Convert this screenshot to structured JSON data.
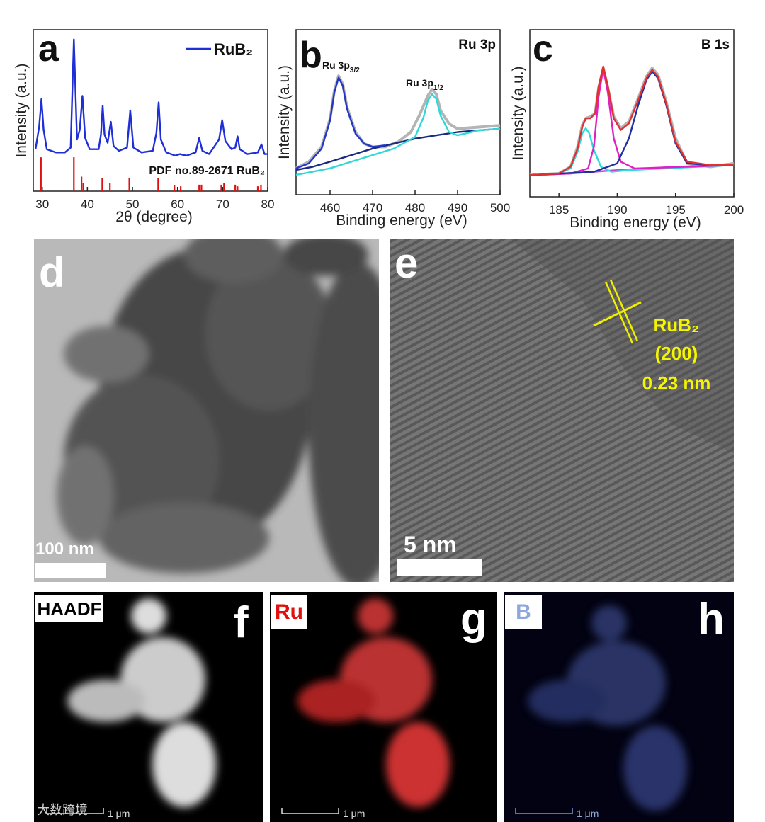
{
  "chart_data": [
    {
      "type": "line",
      "panel": "a",
      "x_label": "2θ (degree)",
      "y_label": "Intensity (a.u.)",
      "xlim": [
        28,
        80
      ],
      "xticks": [
        30,
        40,
        50,
        60,
        70,
        80
      ],
      "ylim": [
        0,
        100
      ],
      "legend": "top-right",
      "series": [
        {
          "name": "RuB₂",
          "color": "#1f2fd8",
          "x": [
            28.5,
            29.3,
            29.8,
            30.3,
            31,
            33,
            35,
            36.3,
            37,
            37.7,
            38.3,
            38.9,
            39.5,
            40.5,
            42.5,
            43.0,
            43.4,
            43.8,
            44.5,
            45.2,
            45.8,
            47,
            48.8,
            49.5,
            50.2,
            52,
            54.5,
            55.3,
            55.8,
            56.3,
            57.5,
            59.5,
            60.5,
            62,
            64.0,
            64.8,
            65.5,
            67,
            69.2,
            69.9,
            70.6,
            72,
            72.8,
            73.3,
            73.8,
            75.5,
            77.8,
            78.6,
            79.3,
            80
          ],
          "values": [
            26,
            40,
            57,
            38,
            26,
            24,
            24,
            27,
            94,
            32,
            38,
            59,
            33,
            26,
            26,
            35,
            53,
            35,
            30,
            43,
            28,
            25,
            27,
            50,
            27,
            24,
            25,
            36,
            55,
            32,
            24,
            22,
            23,
            22,
            24,
            33,
            25,
            23,
            32,
            44,
            31,
            26,
            27,
            34,
            26,
            23,
            24,
            29,
            23,
            23
          ]
        },
        {
          "name": "PDF no.89-2671 RuB₂",
          "color": "#e01010",
          "style": "stem",
          "x": [
            29.7,
            37.0,
            38.7,
            39.1,
            43.3,
            45.0,
            49.3,
            55.7,
            59.3,
            60.7,
            64.8,
            65.3,
            69.7,
            70.3,
            72.8,
            73.3,
            77.8,
            78.5
          ],
          "values": [
            21,
            21,
            9,
            5,
            8,
            5,
            8,
            8,
            3.5,
            3,
            4,
            4,
            4,
            5,
            4,
            3,
            3,
            4
          ]
        }
      ]
    },
    {
      "type": "line",
      "panel": "b",
      "title": "Ru 3p",
      "x_label": "Binding energy (eV)",
      "y_label": "Intensity (a.u.)",
      "xlim": [
        452,
        500
      ],
      "xticks": [
        460,
        470,
        480,
        490,
        500
      ],
      "ylim": [
        0,
        100
      ],
      "annotations": [
        {
          "text": "Ru 3p",
          "sub": "3/2"
        },
        {
          "text": "Ru 3p",
          "sub": "1/2"
        }
      ],
      "series": [
        {
          "color": "#b4b4b4",
          "style": "raw",
          "x": [
            452,
            455,
            458,
            460,
            461,
            462,
            463,
            464,
            466,
            468,
            470,
            473,
            476,
            479,
            481,
            483,
            484,
            485,
            486,
            488,
            490,
            495,
            500
          ],
          "values": [
            16,
            20,
            29,
            46,
            63,
            72,
            67,
            53,
            38,
            31,
            29,
            29,
            32,
            38,
            48,
            60,
            64,
            61,
            51,
            43,
            40,
            41,
            42
          ]
        },
        {
          "color": "#1a2a80",
          "x": [
            452,
            456,
            460,
            465,
            470,
            475,
            480,
            485,
            490,
            495,
            500
          ],
          "values": [
            15,
            17,
            20,
            24,
            28,
            31,
            34,
            36,
            38,
            39,
            40
          ]
        },
        {
          "color": "#30d8d8",
          "x": [
            452,
            456,
            460,
            465,
            470,
            475,
            480,
            482,
            483,
            484,
            485,
            486,
            488,
            490,
            495,
            500
          ],
          "values": [
            12,
            14,
            16,
            20,
            24,
            28,
            35,
            47,
            57,
            61,
            58,
            48,
            38,
            36,
            39,
            40
          ]
        },
        {
          "color": "#2438c8",
          "x": [
            452,
            455,
            458,
            460,
            461,
            462,
            463,
            464,
            466,
            468,
            470,
            473
          ],
          "values": [
            16,
            19,
            28,
            45,
            62,
            71,
            66,
            52,
            37,
            31,
            29,
            30
          ]
        }
      ]
    },
    {
      "type": "line",
      "panel": "c",
      "title": "B 1s",
      "x_label": "Binding energy (eV)",
      "y_label": "Intensity (a.u.)",
      "xlim": [
        182.5,
        200
      ],
      "xticks": [
        185,
        190,
        195,
        200
      ],
      "ylim": [
        0,
        100
      ],
      "series": [
        {
          "color": "#b4b4b4",
          "style": "raw",
          "x": [
            182.5,
            185,
            186,
            186.6,
            187.0,
            187.3,
            187.7,
            188.1,
            188.4,
            188.8,
            189.2,
            189.7,
            190.3,
            191,
            191.8,
            192.5,
            193,
            193.5,
            194.2,
            195,
            196,
            198,
            200
          ],
          "values": [
            13,
            14,
            18,
            30,
            43,
            47,
            48,
            50,
            65,
            77,
            65,
            48,
            41,
            45,
            59,
            72,
            77,
            73,
            57,
            35,
            20,
            18,
            20
          ]
        },
        {
          "color": "#d040c8",
          "x": [
            182.5,
            186,
            190,
            195,
            200
          ],
          "values": [
            13,
            14,
            16,
            18,
            19
          ]
        },
        {
          "color": "#30d8e0",
          "x": [
            182.5,
            185,
            186,
            186.6,
            187.0,
            187.3,
            187.6,
            188.0,
            188.6,
            189.5,
            191,
            200
          ],
          "values": [
            13,
            14,
            17,
            27,
            38,
            41,
            38,
            28,
            18,
            15,
            16,
            19
          ]
        },
        {
          "color": "#e020c0",
          "x": [
            182.5,
            186,
            187.5,
            188.0,
            188.4,
            188.8,
            189.2,
            189.7,
            190.3,
            191.5,
            200
          ],
          "values": [
            13,
            14,
            17,
            30,
            60,
            77,
            62,
            35,
            21,
            17,
            19
          ]
        },
        {
          "color": "#2030a0",
          "x": [
            182.5,
            188,
            190,
            191,
            191.8,
            192.5,
            193,
            193.5,
            194.2,
            195,
            196,
            198,
            200
          ],
          "values": [
            13,
            15,
            20,
            35,
            55,
            70,
            75,
            71,
            55,
            32,
            20,
            19,
            19
          ]
        },
        {
          "color": "#e03030",
          "x": [
            182.5,
            185,
            186,
            186.6,
            187.0,
            187.3,
            187.7,
            188.1,
            188.4,
            188.8,
            189.2,
            189.7,
            190.3,
            191,
            191.8,
            192.5,
            193,
            193.5,
            194.2,
            195,
            196,
            198,
            200
          ],
          "values": [
            13,
            14,
            18,
            29,
            42,
            47,
            47,
            50,
            66,
            78,
            66,
            47,
            40,
            44,
            58,
            71,
            76,
            72,
            56,
            33,
            21,
            19,
            19
          ]
        }
      ]
    }
  ],
  "images": [
    {
      "panel": "d",
      "scale_bar": "100 nm"
    },
    {
      "panel": "e",
      "scale_bar": "5 nm",
      "labels": [
        "RuB₂",
        "(200)",
        "0.23 nm"
      ]
    },
    {
      "panel": "f",
      "channel": "HAADF",
      "scale_bar": "1 μm"
    },
    {
      "panel": "g",
      "channel": "Ru",
      "scale_bar": "1 μm"
    },
    {
      "panel": "h",
      "channel": "B",
      "scale_bar": "1 μm"
    }
  ],
  "watermark": "大数跨境"
}
